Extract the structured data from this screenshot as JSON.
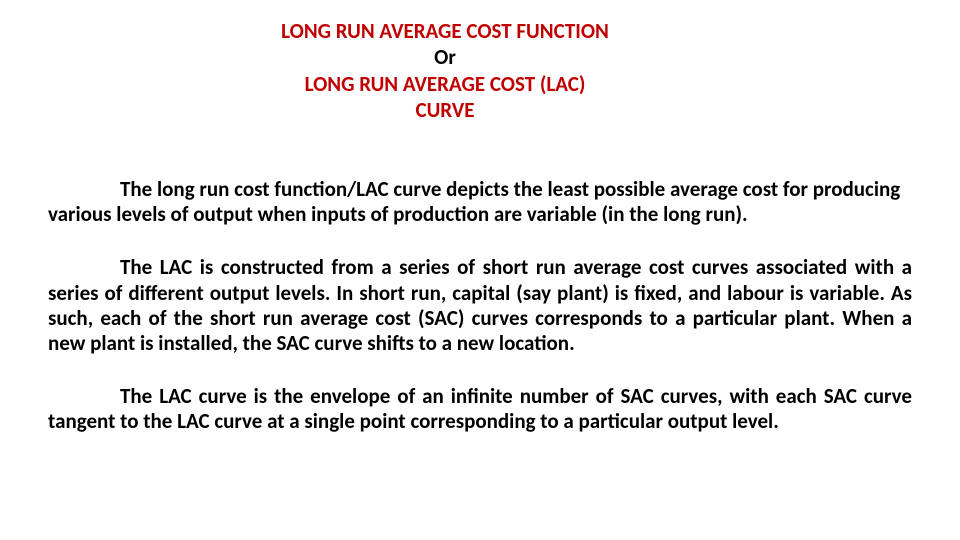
{
  "title": {
    "line1": "LONG RUN AVERAGE COST FUNCTION",
    "line2": "Or",
    "line3": "LONG RUN AVERAGE COST (LAC) CURVE",
    "color_accent": "#c00000",
    "color_text": "#000000"
  },
  "paragraphs": {
    "p1": "The long run cost function/LAC curve depicts the least possible average cost for producing various levels of output when inputs of production  are variable (in the long run).",
    "p2": "The LAC is constructed from a series of short run average cost  curves associated with a series of different output levels.  In  short run, capital (say plant) is  fixed,  and labour is variable. As such, each of the short run average cost (SAC)  curves corresponds to  a  particular  plant.  When  a  new  plant  is  installed,  the  SAC  curve  shifts  to  a  new location.",
    "p3": "The LAC curve is the envelope of an infinite number of SAC  curves, with each SAC   curve  tangent   to  the  LAC  curve  at  a  single  point  corresponding  to  a  particular output level."
  },
  "typography": {
    "font_family": "Calibri, Arial, sans-serif",
    "title_fontsize": 21,
    "body_fontsize": 21,
    "body_weight": 700,
    "background_color": "#ffffff"
  }
}
